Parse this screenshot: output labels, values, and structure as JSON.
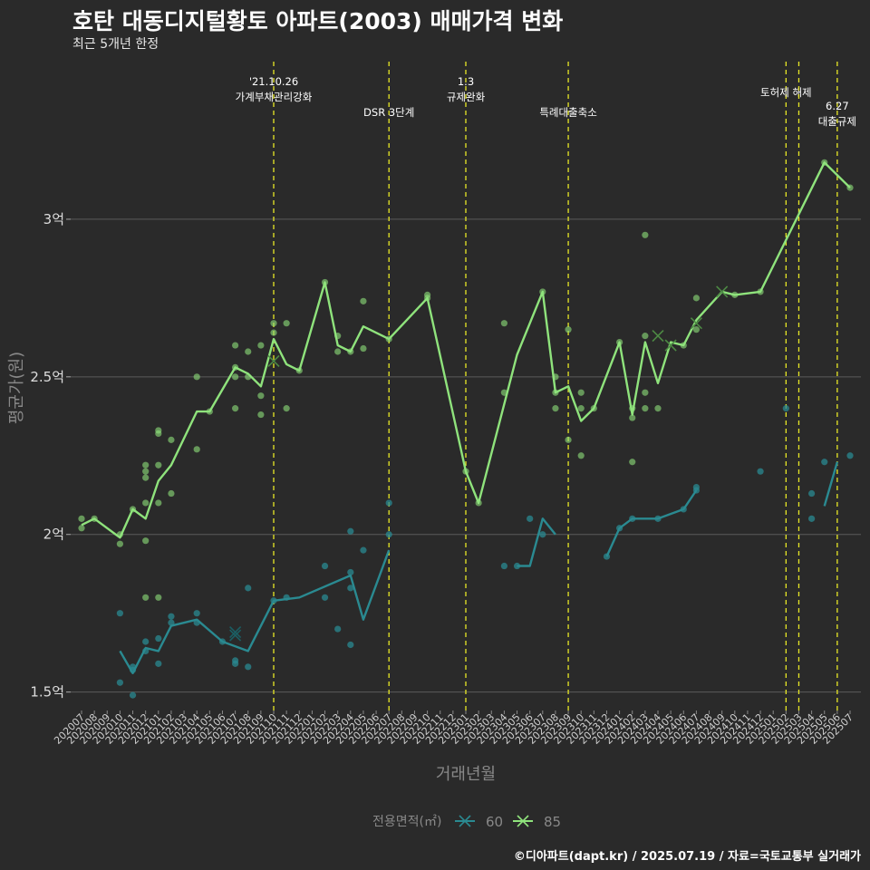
{
  "title": "호탄 대동디지털황토 아파트(2003) 매매가격 변화",
  "subtitle": "최근 5개년 한정",
  "caption": "©디아파트(dapt.kr) / 2025.07.19 / 자료=국토교통부 실거래가",
  "colors": {
    "background": "#2a2a2a",
    "grid": "#5a5a5a",
    "series_60": "#2a8a91",
    "series_85": "#8fe37c",
    "event_line": "#e8e826"
  },
  "chart_data": {
    "type": "line",
    "xlabel": "거래년월",
    "ylabel": "평균가(원)",
    "x": [
      "202007",
      "202008",
      "202009",
      "202010",
      "202011",
      "202012",
      "202101",
      "202102",
      "202103",
      "202104",
      "202105",
      "202106",
      "202107",
      "202108",
      "202109",
      "202110",
      "202111",
      "202112",
      "202201",
      "202202",
      "202203",
      "202204",
      "202205",
      "202206",
      "202207",
      "202208",
      "202209",
      "202210",
      "202211",
      "202212",
      "202301",
      "202302",
      "202303",
      "202304",
      "202305",
      "202306",
      "202307",
      "202308",
      "202309",
      "202310",
      "202311",
      "202312",
      "202401",
      "202402",
      "202403",
      "202404",
      "202405",
      "202406",
      "202407",
      "202408",
      "202409",
      "202410",
      "202411",
      "202412",
      "202501",
      "202502",
      "202503",
      "202504",
      "202505",
      "202506",
      "202507"
    ],
    "ylim": [
      1.43,
      3.5
    ],
    "yticks": [
      {
        "value": 1.5,
        "label": "1.5억"
      },
      {
        "value": 2.0,
        "label": "2억"
      },
      {
        "value": 2.5,
        "label": "2.5억"
      },
      {
        "value": 3.0,
        "label": "3억"
      }
    ],
    "grid": true,
    "legend": {
      "title": "전용면적(㎡)",
      "position": "bottom",
      "labels": [
        "60",
        "85"
      ]
    },
    "series": [
      {
        "name": "85",
        "line": [
          [
            "202007",
            2.03
          ],
          [
            "202008",
            2.05
          ],
          [
            "202010",
            1.99
          ],
          [
            "202011",
            2.08
          ],
          [
            "202012",
            2.05
          ],
          [
            "202101",
            2.17
          ],
          [
            "202102",
            2.22
          ],
          [
            "202104",
            2.39
          ],
          [
            "202105",
            2.39
          ],
          [
            "202107",
            2.53
          ],
          [
            "202108",
            2.51
          ],
          [
            "202109",
            2.47
          ],
          [
            "202110",
            2.62
          ],
          [
            "202111",
            2.54
          ],
          [
            "202112",
            2.52
          ],
          [
            "202202",
            2.8
          ],
          [
            "202203",
            2.6
          ],
          [
            "202204",
            2.58
          ],
          [
            "202205",
            2.66
          ],
          [
            "202207",
            2.62
          ],
          [
            "202210",
            2.75
          ],
          [
            "202301",
            2.2
          ],
          [
            "202302",
            2.1
          ],
          [
            "202305",
            2.57
          ],
          [
            "202307",
            2.77
          ],
          [
            "202308",
            2.45
          ],
          [
            "202309",
            2.47
          ],
          [
            "202310",
            2.36
          ],
          [
            "202311",
            2.4
          ],
          [
            "202401",
            2.61
          ],
          [
            "202402",
            2.38
          ],
          [
            "202403",
            2.61
          ],
          [
            "202404",
            2.48
          ],
          [
            "202405",
            2.61
          ],
          [
            "202406",
            2.6
          ],
          [
            "202407",
            2.68
          ],
          [
            "202409",
            2.77
          ],
          [
            "202410",
            2.76
          ],
          [
            "202412",
            2.77
          ],
          [
            "202505",
            3.18
          ],
          [
            "202507",
            3.1
          ]
        ],
        "points": [
          [
            "202007",
            2.05
          ],
          [
            "202007",
            2.02
          ],
          [
            "202008",
            2.05
          ],
          [
            "202010",
            1.97
          ],
          [
            "202010",
            2.0
          ],
          [
            "202011",
            2.08
          ],
          [
            "202012",
            2.22
          ],
          [
            "202012",
            2.2
          ],
          [
            "202012",
            2.18
          ],
          [
            "202012",
            2.1
          ],
          [
            "202012",
            1.98
          ],
          [
            "202012",
            1.8
          ],
          [
            "202101",
            2.33
          ],
          [
            "202101",
            2.32
          ],
          [
            "202101",
            2.22
          ],
          [
            "202101",
            2.1
          ],
          [
            "202101",
            1.8
          ],
          [
            "202102",
            2.3
          ],
          [
            "202102",
            2.13
          ],
          [
            "202104",
            2.5
          ],
          [
            "202104",
            2.27
          ],
          [
            "202105",
            2.39
          ],
          [
            "202107",
            2.6
          ],
          [
            "202107",
            2.53
          ],
          [
            "202107",
            2.5
          ],
          [
            "202107",
            2.4
          ],
          [
            "202108",
            2.58
          ],
          [
            "202108",
            2.5
          ],
          [
            "202109",
            2.6
          ],
          [
            "202109",
            2.44
          ],
          [
            "202109",
            2.38
          ],
          [
            "202110",
            2.67
          ],
          [
            "202110",
            2.64
          ],
          [
            "202111",
            2.67
          ],
          [
            "202111",
            2.4
          ],
          [
            "202112",
            2.52
          ],
          [
            "202202",
            2.8
          ],
          [
            "202203",
            2.63
          ],
          [
            "202203",
            2.58
          ],
          [
            "202204",
            2.58
          ],
          [
            "202205",
            2.74
          ],
          [
            "202205",
            2.59
          ],
          [
            "202207",
            2.62
          ],
          [
            "202210",
            2.76
          ],
          [
            "202210",
            2.75
          ],
          [
            "202301",
            2.2
          ],
          [
            "202302",
            2.1
          ],
          [
            "202304",
            2.67
          ],
          [
            "202304",
            2.45
          ],
          [
            "202307",
            2.77
          ],
          [
            "202308",
            2.5
          ],
          [
            "202308",
            2.45
          ],
          [
            "202308",
            2.4
          ],
          [
            "202309",
            2.65
          ],
          [
            "202309",
            2.3
          ],
          [
            "202310",
            2.45
          ],
          [
            "202310",
            2.4
          ],
          [
            "202310",
            2.25
          ],
          [
            "202311",
            2.4
          ],
          [
            "202401",
            2.61
          ],
          [
            "202402",
            2.4
          ],
          [
            "202402",
            2.37
          ],
          [
            "202402",
            2.23
          ],
          [
            "202403",
            2.95
          ],
          [
            "202403",
            2.63
          ],
          [
            "202403",
            2.45
          ],
          [
            "202403",
            2.4
          ],
          [
            "202404",
            2.4
          ],
          [
            "202406",
            2.6
          ],
          [
            "202407",
            2.75
          ],
          [
            "202407",
            2.65
          ],
          [
            "202410",
            2.76
          ],
          [
            "202412",
            2.77
          ],
          [
            "202505",
            3.18
          ],
          [
            "202507",
            3.1
          ]
        ],
        "crosses": [
          [
            "202110",
            2.55
          ],
          [
            "202404",
            2.63
          ],
          [
            "202405",
            2.6
          ],
          [
            "202407",
            2.67
          ],
          [
            "202409",
            2.77
          ]
        ]
      },
      {
        "name": "60",
        "line": [
          [
            "202010",
            1.63
          ],
          [
            "202011",
            1.56
          ],
          [
            "202012",
            1.64
          ],
          [
            "202101",
            1.63
          ],
          [
            "202102",
            1.71
          ],
          [
            "202104",
            1.73
          ],
          [
            "202106",
            1.66
          ],
          [
            "202108",
            1.63
          ],
          [
            "202110",
            1.79
          ],
          [
            "202112",
            1.8
          ],
          [
            "202204",
            1.87
          ],
          [
            "202205",
            1.73
          ],
          [
            "202207",
            1.95
          ]
        ],
        "line2": [
          [
            "202305",
            1.9
          ],
          [
            "202306",
            1.9
          ],
          [
            "202307",
            2.05
          ],
          [
            "202308",
            2.0
          ]
        ],
        "line3": [
          [
            "202312",
            1.93
          ],
          [
            "202401",
            2.02
          ],
          [
            "202402",
            2.05
          ],
          [
            "202404",
            2.05
          ],
          [
            "202406",
            2.08
          ],
          [
            "202407",
            2.14
          ]
        ],
        "line4": [
          [
            "202505",
            2.09
          ],
          [
            "202506",
            2.23
          ]
        ],
        "points": [
          [
            "202010",
            1.75
          ],
          [
            "202010",
            1.53
          ],
          [
            "202011",
            1.58
          ],
          [
            "202011",
            1.57
          ],
          [
            "202011",
            1.49
          ],
          [
            "202012",
            1.66
          ],
          [
            "202012",
            1.63
          ],
          [
            "202101",
            1.67
          ],
          [
            "202101",
            1.59
          ],
          [
            "202102",
            1.74
          ],
          [
            "202102",
            1.72
          ],
          [
            "202104",
            1.75
          ],
          [
            "202104",
            1.72
          ],
          [
            "202106",
            1.66
          ],
          [
            "202107",
            1.6
          ],
          [
            "202107",
            1.59
          ],
          [
            "202108",
            1.83
          ],
          [
            "202108",
            1.58
          ],
          [
            "202110",
            1.79
          ],
          [
            "202111",
            1.8
          ],
          [
            "202202",
            1.9
          ],
          [
            "202202",
            1.8
          ],
          [
            "202203",
            1.7
          ],
          [
            "202204",
            2.01
          ],
          [
            "202204",
            1.88
          ],
          [
            "202204",
            1.83
          ],
          [
            "202204",
            1.65
          ],
          [
            "202205",
            1.95
          ],
          [
            "202207",
            2.1
          ],
          [
            "202207",
            2.0
          ],
          [
            "202304",
            1.9
          ],
          [
            "202305",
            1.9
          ],
          [
            "202306",
            2.05
          ],
          [
            "202307",
            2.0
          ],
          [
            "202312",
            1.93
          ],
          [
            "202401",
            2.02
          ],
          [
            "202402",
            2.05
          ],
          [
            "202404",
            2.05
          ],
          [
            "202406",
            2.08
          ],
          [
            "202407",
            2.15
          ],
          [
            "202407",
            2.14
          ],
          [
            "202412",
            2.2
          ],
          [
            "202502",
            2.4
          ],
          [
            "202504",
            2.13
          ],
          [
            "202504",
            2.05
          ],
          [
            "202505",
            2.23
          ],
          [
            "202507",
            2.25
          ]
        ],
        "crosses": [
          [
            "202107",
            1.69
          ],
          [
            "202107",
            1.68
          ]
        ]
      }
    ],
    "events": [
      {
        "x": "202110",
        "lines": [
          "'21.10.26",
          "가계부채관리강화"
        ],
        "level": 0
      },
      {
        "x": "202207",
        "lines": [
          "DSR 3단계"
        ],
        "level": 1
      },
      {
        "x": "202301",
        "lines": [
          "1.3",
          "규제완화"
        ],
        "level": 0
      },
      {
        "x": "202309",
        "lines": [
          "특례대출축소"
        ],
        "level": 1
      },
      {
        "x": "202502",
        "lines": [
          "토허제 해제"
        ],
        "level": 0.35
      },
      {
        "x": "202503",
        "lines": [],
        "level": 0
      },
      {
        "x": "202506",
        "lines": [
          "6.27",
          "대출규제"
        ],
        "level": 0.8
      }
    ]
  }
}
